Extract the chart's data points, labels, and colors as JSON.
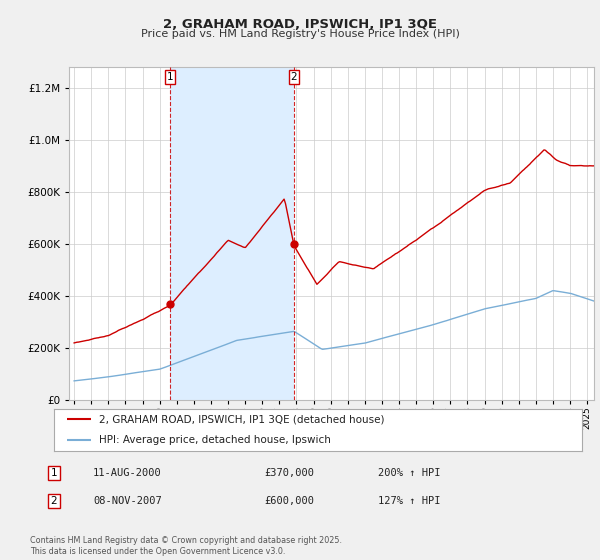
{
  "title": "2, GRAHAM ROAD, IPSWICH, IP1 3QE",
  "subtitle": "Price paid vs. HM Land Registry's House Price Index (HPI)",
  "legend_line1": "2, GRAHAM ROAD, IPSWICH, IP1 3QE (detached house)",
  "legend_line2": "HPI: Average price, detached house, Ipswich",
  "transaction1_label": "1",
  "transaction1_date": "11-AUG-2000",
  "transaction1_price": "£370,000",
  "transaction1_hpi": "200% ↑ HPI",
  "transaction1_year": 2000.62,
  "transaction1_value": 370000,
  "transaction2_label": "2",
  "transaction2_date": "08-NOV-2007",
  "transaction2_price": "£600,000",
  "transaction2_hpi": "127% ↑ HPI",
  "transaction2_year": 2007.85,
  "transaction2_value": 600000,
  "footer": "Contains HM Land Registry data © Crown copyright and database right 2025.\nThis data is licensed under the Open Government Licence v3.0.",
  "red_color": "#cc0000",
  "blue_color": "#7aaed6",
  "shade_color": "#ddeeff",
  "background_color": "#f0f0f0",
  "plot_bg_color": "#ffffff",
  "ylim": [
    0,
    1280000
  ],
  "xlim_start": 1994.7,
  "xlim_end": 2025.4
}
